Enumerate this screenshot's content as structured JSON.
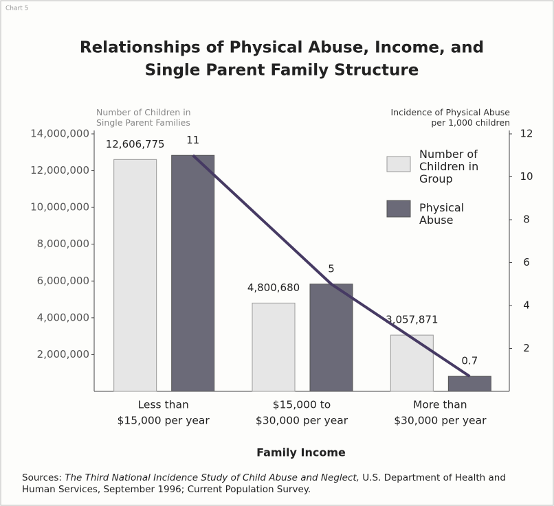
{
  "chart_label": "Chart 5",
  "sources": {
    "label": "Sources:",
    "citation": "The Third National Incidence Study of Child Abuse and Neglect,",
    "rest": "U.S. Department of Health and Human Services, September 1996; Current Population Survey."
  },
  "chart_data": {
    "type": "bar",
    "title": [
      "Relationships of Physical Abuse, Income, and",
      "Single Parent Family Structure"
    ],
    "y_label": "Number of Children in Single Parent Families",
    "y2_label": "Incidence of Physical Abuse per 1,000 children",
    "x_label": "Family Income",
    "categories": [
      [
        "Less than",
        "$15,000 per year"
      ],
      [
        "$15,000 to",
        "$30,000 per year"
      ],
      [
        "More than",
        "$30,000 per year"
      ]
    ],
    "series": [
      {
        "name": "Number of Children in Group",
        "color": "#e6e6e6",
        "values": [
          12606775,
          4800680,
          3057871
        ],
        "value_labels": [
          "12,606,775",
          "4,800,680",
          "3,057,871"
        ]
      },
      {
        "name": "Physical Abuse",
        "color": "#6b6a78",
        "axis": "y2",
        "line_color": "#463a63",
        "values": [
          11,
          5,
          0.7
        ]
      }
    ],
    "ylim": [
      0,
      14000000
    ],
    "yticks": [
      {
        "value": 2000000,
        "label": "2,000,000"
      },
      {
        "value": 4000000,
        "label": "4,000,000"
      },
      {
        "value": 6000000,
        "label": "6,000,000"
      },
      {
        "value": 8000000,
        "label": "8,000,000"
      },
      {
        "value": 10000000,
        "label": "10,000,000"
      },
      {
        "value": 12000000,
        "label": "12,000,000"
      },
      {
        "value": 14000000,
        "label": "14,000,000"
      }
    ],
    "y2lim": [
      0,
      12
    ],
    "y2ticks": [
      2,
      4,
      6,
      8,
      10,
      12
    ]
  }
}
